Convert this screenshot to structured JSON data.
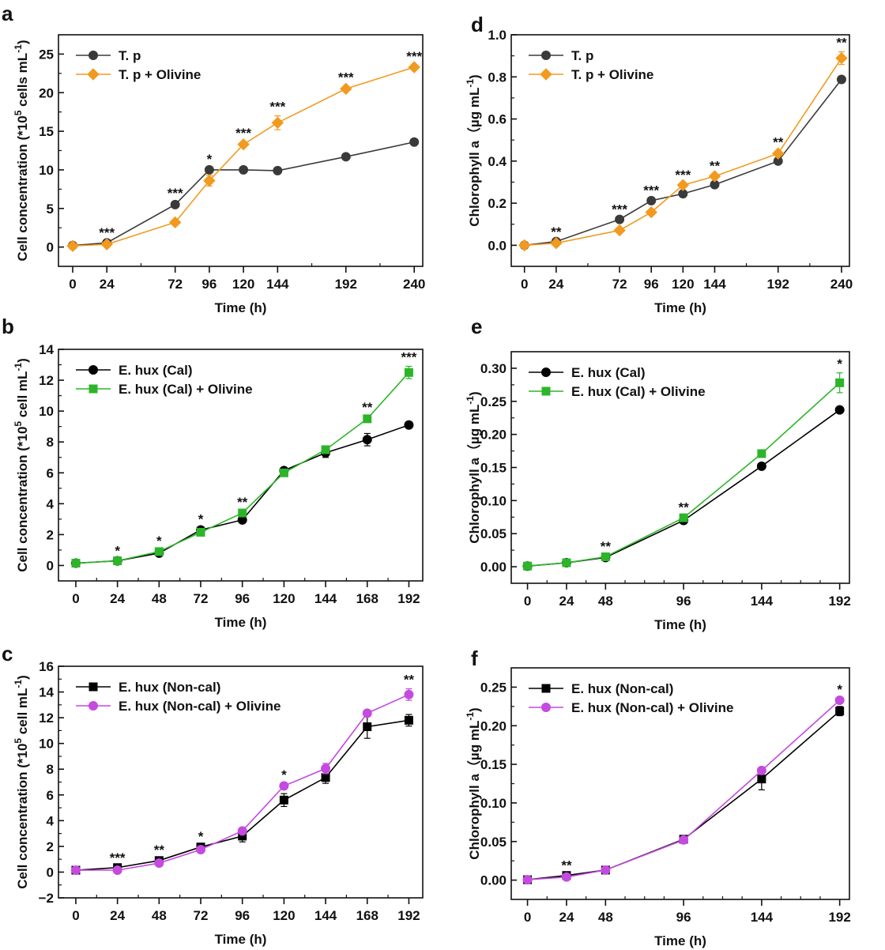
{
  "chart_data": [
    {
      "panel": "a",
      "type": "line",
      "xlabel": "Time (h)",
      "ylabel": "Cell concentration (*10^5 cells mL^-1)",
      "ylabel_parts": {
        "pre": "Cell concentration (*10",
        "sup1": "5",
        "mid": " cells mL",
        "sup2": "-1",
        "post": ")"
      },
      "x": [
        0,
        24,
        72,
        96,
        120,
        144,
        192,
        240
      ],
      "xticks": [
        0,
        24,
        72,
        96,
        120,
        144,
        192,
        240
      ],
      "xlim": [
        -10,
        246
      ],
      "yticks": [
        0,
        5,
        10,
        15,
        20,
        25
      ],
      "ylim": [
        -2.5,
        27.5
      ],
      "legend_position": "top-left",
      "series": [
        {
          "name": "T. p",
          "color": "#3a3a3a",
          "marker": "circle",
          "values": [
            0.2,
            0.55,
            5.5,
            10.0,
            10.0,
            9.9,
            11.7,
            13.6
          ],
          "errors": [
            0.1,
            0.1,
            0.3,
            0.2,
            0.2,
            0.2,
            0.2,
            0.2
          ]
        },
        {
          "name": "T. p + Olivine",
          "color": "#f29a1f",
          "marker": "diamond",
          "values": [
            0.15,
            0.35,
            3.2,
            8.6,
            13.3,
            16.1,
            20.5,
            23.3
          ],
          "errors": [
            0.1,
            0.1,
            0.2,
            0.7,
            0.3,
            0.9,
            0.3,
            0.2
          ]
        }
      ],
      "significance": [
        {
          "x": 24,
          "label": "***"
        },
        {
          "x": 72,
          "label": "***"
        },
        {
          "x": 96,
          "label": "*"
        },
        {
          "x": 120,
          "label": "***"
        },
        {
          "x": 144,
          "label": "***"
        },
        {
          "x": 192,
          "label": "***"
        },
        {
          "x": 240,
          "label": "***"
        }
      ]
    },
    {
      "panel": "d",
      "type": "line",
      "xlabel": "Time (h)",
      "ylabel": "Chlorophyll a (µg mL^-1)",
      "ylabel_parts": {
        "pre": "Chlorophyll a（µg mL",
        "sup1": "",
        "mid": "",
        "sup2": "-1",
        "post": ")"
      },
      "x": [
        0,
        24,
        72,
        96,
        120,
        144,
        192,
        240
      ],
      "xticks": [
        0,
        24,
        72,
        96,
        120,
        144,
        192,
        240
      ],
      "xlim": [
        -10,
        246
      ],
      "yticks": [
        0.0,
        0.2,
        0.4,
        0.6,
        0.8,
        1.0
      ],
      "ytick_labels": [
        "0.0",
        "0.2",
        "0.4",
        "0.6",
        "0.8",
        "1.0"
      ],
      "ylim": [
        -0.1,
        1.0
      ],
      "legend_position": "top-left",
      "series": [
        {
          "name": "T. p",
          "color": "#3a3a3a",
          "marker": "circle",
          "values": [
            0.0,
            0.018,
            0.123,
            0.212,
            0.245,
            0.288,
            0.4,
            0.788
          ],
          "errors": [
            0.003,
            0.003,
            0.005,
            0.005,
            0.005,
            0.005,
            0.005,
            0.005
          ]
        },
        {
          "name": "T. p + Olivine",
          "color": "#f29a1f",
          "marker": "diamond",
          "values": [
            0.0,
            0.01,
            0.071,
            0.157,
            0.286,
            0.328,
            0.436,
            0.889
          ],
          "errors": [
            0.003,
            0.003,
            0.005,
            0.005,
            0.005,
            0.006,
            0.01,
            0.03
          ]
        }
      ],
      "significance": [
        {
          "x": 24,
          "label": "**"
        },
        {
          "x": 72,
          "label": "***"
        },
        {
          "x": 96,
          "label": "***"
        },
        {
          "x": 120,
          "label": "***"
        },
        {
          "x": 144,
          "label": "**"
        },
        {
          "x": 192,
          "label": "**"
        },
        {
          "x": 240,
          "label": "**"
        }
      ]
    },
    {
      "panel": "b",
      "type": "line",
      "xlabel": "Time (h)",
      "ylabel": "Cell concentration (*10^5 cell mL^-1)",
      "ylabel_parts": {
        "pre": "Cell concentration (*10",
        "sup1": "5",
        "mid": " cell mL",
        "sup2": "-1",
        "post": ")"
      },
      "x": [
        0,
        24,
        48,
        72,
        96,
        120,
        144,
        168,
        192
      ],
      "xticks": [
        0,
        24,
        48,
        72,
        96,
        120,
        144,
        168,
        192
      ],
      "xlim": [
        -10,
        200
      ],
      "yticks": [
        0,
        2,
        4,
        6,
        8,
        10,
        12,
        14
      ],
      "ylim": [
        -1,
        14
      ],
      "legend_position": "top-left",
      "series": [
        {
          "name": "E. hux (Cal)",
          "color": "#000000",
          "marker": "circle",
          "values": [
            0.15,
            0.3,
            0.8,
            2.3,
            2.95,
            6.15,
            7.3,
            8.15,
            9.1
          ],
          "errors": [
            0.05,
            0.05,
            0.1,
            0.1,
            0.1,
            0.1,
            0.3,
            0.4,
            0.1
          ]
        },
        {
          "name": "E. hux (Cal) + Olivine",
          "color": "#2db52a",
          "marker": "square",
          "values": [
            0.15,
            0.3,
            0.9,
            2.15,
            3.4,
            6.0,
            7.5,
            9.5,
            12.5
          ],
          "errors": [
            0.05,
            0.05,
            0.1,
            0.1,
            0.1,
            0.1,
            0.15,
            0.15,
            0.4
          ]
        }
      ],
      "significance": [
        {
          "x": 24,
          "label": "*"
        },
        {
          "x": 48,
          "label": "*"
        },
        {
          "x": 72,
          "label": "*"
        },
        {
          "x": 96,
          "label": "**"
        },
        {
          "x": 168,
          "label": "**"
        },
        {
          "x": 192,
          "label": "***"
        }
      ]
    },
    {
      "panel": "e",
      "type": "line",
      "xlabel": "Time (h)",
      "ylabel": "Chlorophyll a (µg mL^-1)",
      "ylabel_parts": {
        "pre": "Chlorophyll a（µg mL",
        "sup1": "",
        "mid": "",
        "sup2": "-1",
        "post": ")"
      },
      "x": [
        0,
        24,
        48,
        96,
        144,
        192
      ],
      "xticks": [
        0,
        24,
        48,
        96,
        144,
        192
      ],
      "xlim": [
        -10,
        198
      ],
      "yticks": [
        0.0,
        0.05,
        0.1,
        0.15,
        0.2,
        0.25,
        0.3
      ],
      "ytick_labels": [
        "0.00",
        "0.05",
        "0.10",
        "0.15",
        "0.20",
        "0.25",
        "0.30"
      ],
      "ylim": [
        -0.025,
        0.325
      ],
      "legend_position": "top-left",
      "series": [
        {
          "name": "E. hux (Cal)",
          "color": "#000000",
          "marker": "circle",
          "values": [
            0.001,
            0.006,
            0.014,
            0.07,
            0.152,
            0.237
          ],
          "errors": [
            0.001,
            0.001,
            0.002,
            0.002,
            0.004,
            0.003
          ]
        },
        {
          "name": "E. hux (Cal) + Olivine",
          "color": "#2db52a",
          "marker": "square",
          "values": [
            0.001,
            0.006,
            0.015,
            0.074,
            0.171,
            0.278
          ],
          "errors": [
            0.001,
            0.001,
            0.002,
            0.002,
            0.004,
            0.015
          ]
        }
      ],
      "significance": [
        {
          "x": 48,
          "label": "**"
        },
        {
          "x": 96,
          "label": "**"
        },
        {
          "x": 192,
          "label": "*"
        }
      ]
    },
    {
      "panel": "c",
      "type": "line",
      "xlabel": "Time (h)",
      "ylabel": "Cell concentration (*10^5 cell mL^-1)",
      "ylabel_parts": {
        "pre": "Cell concentration (*10",
        "sup1": "5",
        "mid": " cell mL",
        "sup2": "-1",
        "post": ")"
      },
      "x": [
        0,
        24,
        48,
        72,
        96,
        120,
        144,
        168,
        192
      ],
      "xticks": [
        0,
        24,
        48,
        72,
        96,
        120,
        144,
        168,
        192
      ],
      "xlim": [
        -10,
        200
      ],
      "yticks": [
        -2,
        0,
        2,
        4,
        6,
        8,
        10,
        12,
        14,
        16
      ],
      "ytick_labels": [
        "−2",
        "0",
        "2",
        "4",
        "6",
        "8",
        "10",
        "12",
        "14",
        "16"
      ],
      "ylim": [
        -2,
        16
      ],
      "legend_position": "top-left",
      "series": [
        {
          "name": "E. hux (Non-cal)",
          "color": "#000000",
          "marker": "square",
          "values": [
            0.15,
            0.35,
            0.9,
            1.95,
            2.8,
            5.6,
            7.35,
            11.3,
            11.8
          ],
          "errors": [
            0.05,
            0.05,
            0.1,
            0.1,
            0.45,
            0.5,
            0.45,
            0.9,
            0.45
          ]
        },
        {
          "name": "E. hux (Non-cal) + Olivine",
          "color": "#c44ae0",
          "marker": "circle",
          "values": [
            0.15,
            0.15,
            0.7,
            1.75,
            3.2,
            6.7,
            8.05,
            12.35,
            13.8
          ],
          "errors": [
            0.05,
            0.05,
            0.1,
            0.1,
            0.1,
            0.15,
            0.4,
            0.25,
            0.45
          ]
        }
      ],
      "significance": [
        {
          "x": 24,
          "label": "***"
        },
        {
          "x": 48,
          "label": "**"
        },
        {
          "x": 72,
          "label": "*"
        },
        {
          "x": 120,
          "label": "*"
        },
        {
          "x": 192,
          "label": "**"
        }
      ]
    },
    {
      "panel": "f",
      "type": "line",
      "xlabel": "Time (h)",
      "ylabel": "Chlorophyll a (µg mL^-1)",
      "ylabel_parts": {
        "pre": "Chlorophyll a（µg mL",
        "sup1": "",
        "mid": "",
        "sup2": "-1",
        "post": ")"
      },
      "x": [
        0,
        24,
        48,
        96,
        144,
        192
      ],
      "xticks": [
        0,
        24,
        48,
        96,
        144,
        192
      ],
      "xlim": [
        -10,
        198
      ],
      "yticks": [
        0.0,
        0.05,
        0.1,
        0.15,
        0.2,
        0.25
      ],
      "ytick_labels": [
        "0.00",
        "0.05",
        "0.10",
        "0.15",
        "0.20",
        "0.25"
      ],
      "ylim": [
        -0.025,
        0.275
      ],
      "legend_position": "top-left",
      "series": [
        {
          "name": "E. hux (Non-cal)",
          "color": "#000000",
          "marker": "square",
          "values": [
            0.0005,
            0.006,
            0.013,
            0.053,
            0.131,
            0.219
          ],
          "errors": [
            0.001,
            0.001,
            0.002,
            0.002,
            0.014,
            0.006
          ]
        },
        {
          "name": "E. hux (Non-cal) + Olivine",
          "color": "#c44ae0",
          "marker": "circle",
          "values": [
            0.0005,
            0.004,
            0.013,
            0.052,
            0.142,
            0.233
          ],
          "errors": [
            0.001,
            0.001,
            0.002,
            0.002,
            0.004,
            0.002
          ]
        }
      ],
      "significance": [
        {
          "x": 24,
          "label": "**"
        },
        {
          "x": 192,
          "label": "*"
        }
      ]
    }
  ]
}
